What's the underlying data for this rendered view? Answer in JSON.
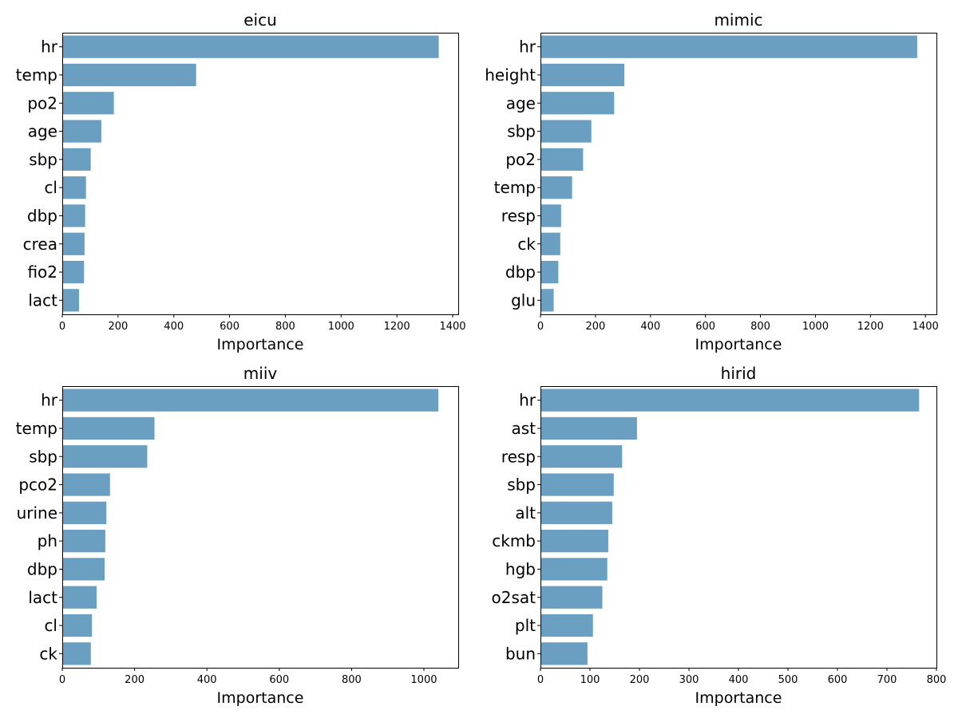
{
  "chart_data": [
    {
      "type": "bar",
      "orientation": "horizontal",
      "title": "eicu",
      "xlabel": "Importance",
      "ylabel": "",
      "categories": [
        "hr",
        "temp",
        "po2",
        "age",
        "sbp",
        "cl",
        "dbp",
        "crea",
        "fio2",
        "lact"
      ],
      "values": [
        1350,
        480,
        185,
        140,
        102,
        85,
        82,
        80,
        78,
        60
      ],
      "xlim": [
        0,
        1420
      ],
      "xticks": [
        0,
        200,
        400,
        600,
        800,
        1000,
        1200,
        1400
      ],
      "grid": false,
      "color": "#6b9fc2"
    },
    {
      "type": "bar",
      "orientation": "horizontal",
      "title": "mimic",
      "xlabel": "Importance",
      "ylabel": "",
      "categories": [
        "hr",
        "height",
        "age",
        "sbp",
        "po2",
        "temp",
        "resp",
        "ck",
        "dbp",
        "glu"
      ],
      "values": [
        1370,
        305,
        268,
        185,
        155,
        115,
        75,
        72,
        65,
        48
      ],
      "xlim": [
        0,
        1440
      ],
      "xticks": [
        0,
        200,
        400,
        600,
        800,
        1000,
        1200,
        1400
      ],
      "grid": false,
      "color": "#6b9fc2"
    },
    {
      "type": "bar",
      "orientation": "horizontal",
      "title": "miiv",
      "xlabel": "Importance",
      "ylabel": "",
      "categories": [
        "hr",
        "temp",
        "sbp",
        "pco2",
        "urine",
        "ph",
        "dbp",
        "lact",
        "cl",
        "ck"
      ],
      "values": [
        1040,
        255,
        235,
        132,
        122,
        119,
        117,
        95,
        82,
        79
      ],
      "xlim": [
        0,
        1095
      ],
      "xticks": [
        0,
        200,
        400,
        600,
        800,
        1000
      ],
      "grid": false,
      "color": "#6b9fc2"
    },
    {
      "type": "bar",
      "orientation": "horizontal",
      "title": "hirid",
      "xlabel": "Importance",
      "ylabel": "",
      "categories": [
        "hr",
        "ast",
        "resp",
        "sbp",
        "alt",
        "ckmb",
        "hgb",
        "o2sat",
        "plt",
        "bun"
      ],
      "values": [
        765,
        195,
        165,
        148,
        145,
        137,
        135,
        125,
        106,
        95
      ],
      "xlim": [
        0,
        800
      ],
      "xticks": [
        0,
        100,
        200,
        300,
        400,
        500,
        600,
        700,
        800
      ],
      "grid": false,
      "color": "#6b9fc2"
    }
  ]
}
